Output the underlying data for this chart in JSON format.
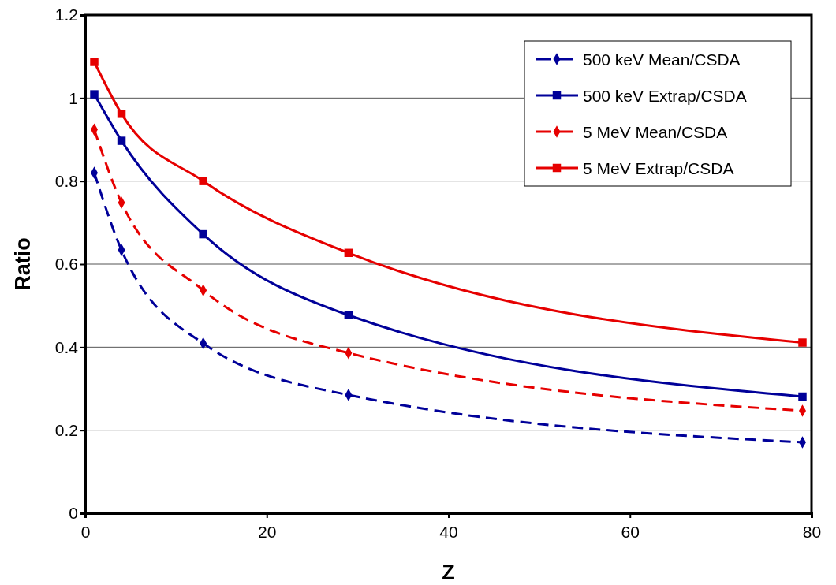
{
  "chart_data": {
    "type": "line",
    "xlabel": "Z",
    "ylabel": "Ratio",
    "xlim": [
      0,
      80
    ],
    "xticks": [
      0,
      20,
      40,
      60,
      80
    ],
    "ylim": [
      0,
      1.2
    ],
    "yticks": [
      0,
      0.2,
      0.4,
      0.6,
      0.8,
      1,
      1.2
    ],
    "grid": "y",
    "legend": "top right",
    "x": [
      1,
      4,
      13,
      29,
      79
    ],
    "series": [
      {
        "name": "500 keV Mean/CSDA",
        "color": "#000099",
        "marker": "diamond",
        "line_style": "dashed",
        "values": [
          0.82,
          0.634,
          0.409,
          0.285,
          0.171
        ]
      },
      {
        "name": "500 keV Extrap/CSDA",
        "color": "#000099",
        "marker": "square",
        "line_style": "solid",
        "values": [
          1.009,
          0.897,
          0.672,
          0.477,
          0.281
        ]
      },
      {
        "name": "5 MeV Mean/CSDA",
        "color": "#e60000",
        "marker": "diamond",
        "line_style": "dashed",
        "values": [
          0.924,
          0.748,
          0.537,
          0.386,
          0.247
        ]
      },
      {
        "name": "5 MeV Extrap/CSDA",
        "color": "#e60000",
        "marker": "square",
        "line_style": "solid",
        "values": [
          1.087,
          0.962,
          0.8,
          0.627,
          0.411
        ]
      }
    ]
  }
}
